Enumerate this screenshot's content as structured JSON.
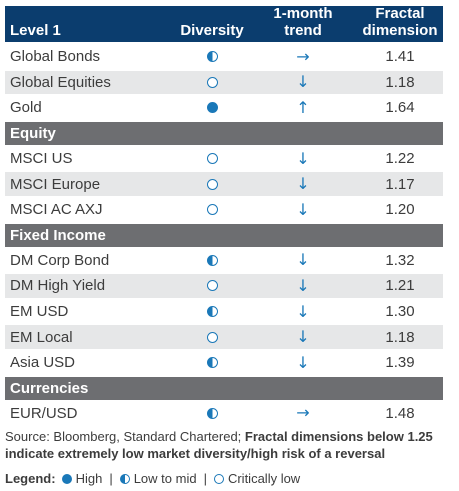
{
  "header": {
    "col_name": "Level 1",
    "col_diversity": "Diversity",
    "col_trend_line1": "1-month",
    "col_trend_line2": "trend",
    "col_fractal_line1": "Fractal",
    "col_fractal_line2": "dimension"
  },
  "level1": [
    {
      "name": "Global Bonds",
      "diversity": "low-to-mid",
      "trend": "sideways",
      "fractal": "1.41"
    },
    {
      "name": "Global Equities",
      "diversity": "critically-low",
      "trend": "down",
      "fractal": "1.18"
    },
    {
      "name": "Gold",
      "diversity": "high",
      "trend": "up",
      "fractal": "1.64"
    }
  ],
  "sections": {
    "equity": "Equity",
    "fixed_income": "Fixed Income",
    "currencies": "Currencies"
  },
  "equity": [
    {
      "name": "MSCI US",
      "diversity": "critically-low",
      "trend": "down",
      "fractal": "1.22"
    },
    {
      "name": "MSCI Europe",
      "diversity": "critically-low",
      "trend": "down",
      "fractal": "1.17"
    },
    {
      "name": "MSCI AC AXJ",
      "diversity": "critically-low",
      "trend": "down",
      "fractal": "1.20"
    }
  ],
  "fixed_income": [
    {
      "name": "DM Corp Bond",
      "diversity": "low-to-mid",
      "trend": "down",
      "fractal": "1.32"
    },
    {
      "name": "DM High Yield",
      "diversity": "critically-low",
      "trend": "down",
      "fractal": "1.21"
    },
    {
      "name": "EM USD",
      "diversity": "low-to-mid",
      "trend": "down",
      "fractal": "1.30"
    },
    {
      "name": "EM Local",
      "diversity": "critically-low",
      "trend": "down",
      "fractal": "1.18"
    },
    {
      "name": "Asia USD",
      "diversity": "low-to-mid",
      "trend": "down",
      "fractal": "1.39"
    }
  ],
  "currencies": [
    {
      "name": "EUR/USD",
      "diversity": "low-to-mid",
      "trend": "sideways",
      "fractal": "1.48"
    }
  ],
  "source": {
    "plain": "Source: Bloomberg, Standard Chartered; ",
    "bold": "Fractal dimensions below 1.25 indicate extremely low market diversity/high risk of a reversal"
  },
  "legend": {
    "label": "Legend:",
    "high": "High",
    "low": "Low to mid",
    "critical": "Critically low",
    "separator": "|"
  },
  "colors": {
    "header_bg": "#0b3d6e",
    "section_bg": "#6d6e71",
    "shade": "#e6e7e8",
    "accent": "#1a78b8"
  },
  "icons": {
    "up": "arrow-up-icon",
    "down": "arrow-down-icon",
    "sideways": "arrow-right-icon"
  }
}
